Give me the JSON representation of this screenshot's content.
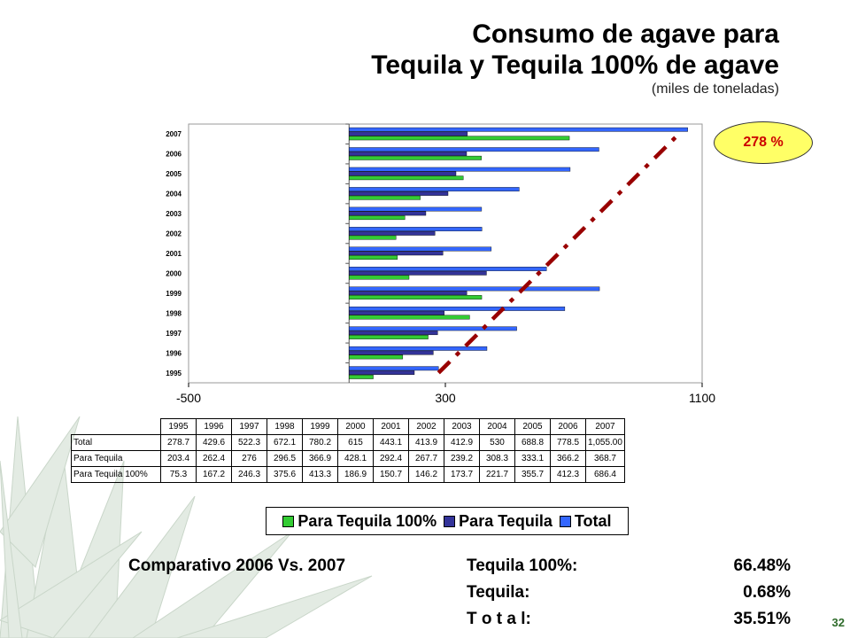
{
  "title_line1": "Consumo de agave para",
  "title_line2": "Tequila y Tequila 100% de agave",
  "subtitle": "(miles de toneladas)",
  "badge_text": "278 %",
  "chart_data": {
    "type": "bar",
    "orientation": "horizontal",
    "categories": [
      "1995",
      "1996",
      "1997",
      "1998",
      "1999",
      "2000",
      "2001",
      "2002",
      "2003",
      "2004",
      "2005",
      "2006",
      "2007"
    ],
    "series": [
      {
        "name": "Para Tequila 100%",
        "color": "#33cc33",
        "values": [
          75.3,
          167.2,
          246.3,
          375.6,
          413.3,
          186.9,
          150.7,
          146.2,
          173.7,
          221.7,
          355.7,
          412.3,
          686.4
        ]
      },
      {
        "name": "Para Tequila",
        "color": "#333399",
        "values": [
          203.4,
          262.4,
          276,
          296.5,
          366.9,
          428.1,
          292.4,
          267.7,
          239.2,
          308.3,
          333.1,
          366.2,
          368.7
        ]
      },
      {
        "name": "Total",
        "color": "#3366ff",
        "values": [
          278.7,
          429.6,
          522.3,
          672.1,
          780.2,
          615,
          443.1,
          413.9,
          412.9,
          530,
          688.8,
          778.5,
          1055.0
        ]
      }
    ],
    "xlim": [
      -500,
      1100
    ],
    "xticks": [
      "-500",
      "300",
      "1100"
    ],
    "trend_line": {
      "from_category": "1995",
      "to_category": "2007",
      "style": "dash-dot",
      "color": "#990000"
    },
    "legend_position": "bottom",
    "xlabel": "",
    "ylabel": ""
  },
  "table": {
    "years": [
      "1995",
      "1996",
      "1997",
      "1998",
      "1999",
      "2000",
      "2001",
      "2002",
      "2003",
      "2004",
      "2005",
      "2006",
      "2007"
    ],
    "rows": [
      {
        "label": "Total",
        "values": [
          "278.7",
          "429.6",
          "522.3",
          "672.1",
          "780.2",
          "615",
          "443.1",
          "413.9",
          "412.9",
          "530",
          "688.8",
          "778.5",
          "1,055.00"
        ]
      },
      {
        "label": "Para Tequila",
        "values": [
          "203.4",
          "262.4",
          "276",
          "296.5",
          "366.9",
          "428.1",
          "292.4",
          "267.7",
          "239.2",
          "308.3",
          "333.1",
          "366.2",
          "368.7"
        ]
      },
      {
        "label": "Para Tequila 100%",
        "values": [
          "75.3",
          "167.2",
          "246.3",
          "375.6",
          "413.3",
          "186.9",
          "150.7",
          "146.2",
          "173.7",
          "221.7",
          "355.7",
          "412.3",
          "686.4"
        ]
      }
    ]
  },
  "legend": [
    {
      "label": "Para Tequila 100%",
      "color": "#33cc33"
    },
    {
      "label": "Para Tequila",
      "color": "#333399"
    },
    {
      "label": "Total",
      "color": "#3366ff"
    }
  ],
  "comparison": {
    "heading": "Comparativo 2006 Vs. 2007",
    "items": [
      {
        "label": "Tequila 100%:",
        "value": "66.48%"
      },
      {
        "label": "Tequila:",
        "value": "0.68%"
      },
      {
        "label": "T o t a l:",
        "value": "35.51%"
      }
    ]
  },
  "page_number": "32"
}
